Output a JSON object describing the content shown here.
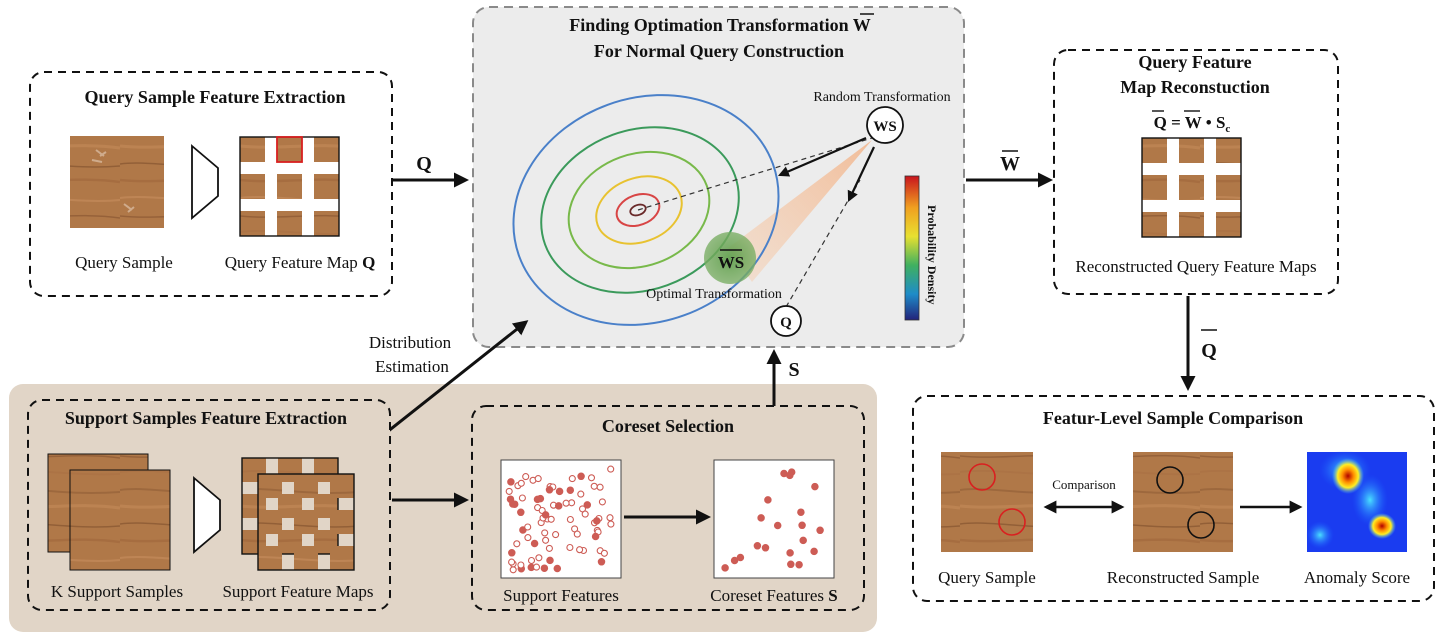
{
  "query_extraction": {
    "title": "Query Sample Feature Extraction",
    "sample_label": "Query Sample",
    "map_label": "Query Feature Map",
    "map_symbol": "Q"
  },
  "arrow_q_label": "Q",
  "optimization": {
    "title_line1": "Finding Optimation Transformation",
    "title_symbol": "W",
    "title_line2": "For Normal Query Construction",
    "random_label": "Random Transformation",
    "ws_node": "WS",
    "optimal_node": "WS",
    "optimal_label": "Optimal Transformation",
    "q_node": "Q",
    "colorbar_label": "Probability Density"
  },
  "arrow_w_label": "W",
  "reconstruction": {
    "title_line1": "Query Feature",
    "title_line2": "Map Reconstuction",
    "equation_left": "Q",
    "equation_eq": "=",
    "equation_w": "W",
    "equation_dot": "•",
    "equation_s": "S",
    "equation_sub": "c",
    "map_label": "Reconstructed Query Feature Maps"
  },
  "arrow_qbar_label": "Q",
  "distribution_label_line1": "Distribution",
  "distribution_label_line2": "Estimation",
  "arrow_s_label": "S",
  "support_extraction": {
    "title": "Support Samples Feature Extraction",
    "samples_label": "K Support Samples",
    "maps_label": "Support Feature Maps"
  },
  "coreset": {
    "title": "Coreset Selection",
    "support_label": "Support Features",
    "coreset_label": "Coreset Features",
    "coreset_symbol": "S"
  },
  "comparison": {
    "title": "Featur-Level Sample Comparison",
    "arrow_label": "Comparison",
    "query_label": "Query Sample",
    "recon_label": "Reconstructed Sample",
    "score_label": "Anomaly Score"
  },
  "colors": {
    "wood_light": "#b07848",
    "wood_dark": "#8a5530",
    "gray_panel": "#ececec",
    "beige_panel": "#e1d5c7",
    "dot_red": "#cd5c55",
    "contour_blue": "#4a80c9",
    "contour_green": "#3b9a5b",
    "contour_lightgreen": "#78b94a",
    "contour_yellow": "#e8c230",
    "contour_red": "#d84545",
    "highlight_red": "#d92020"
  }
}
